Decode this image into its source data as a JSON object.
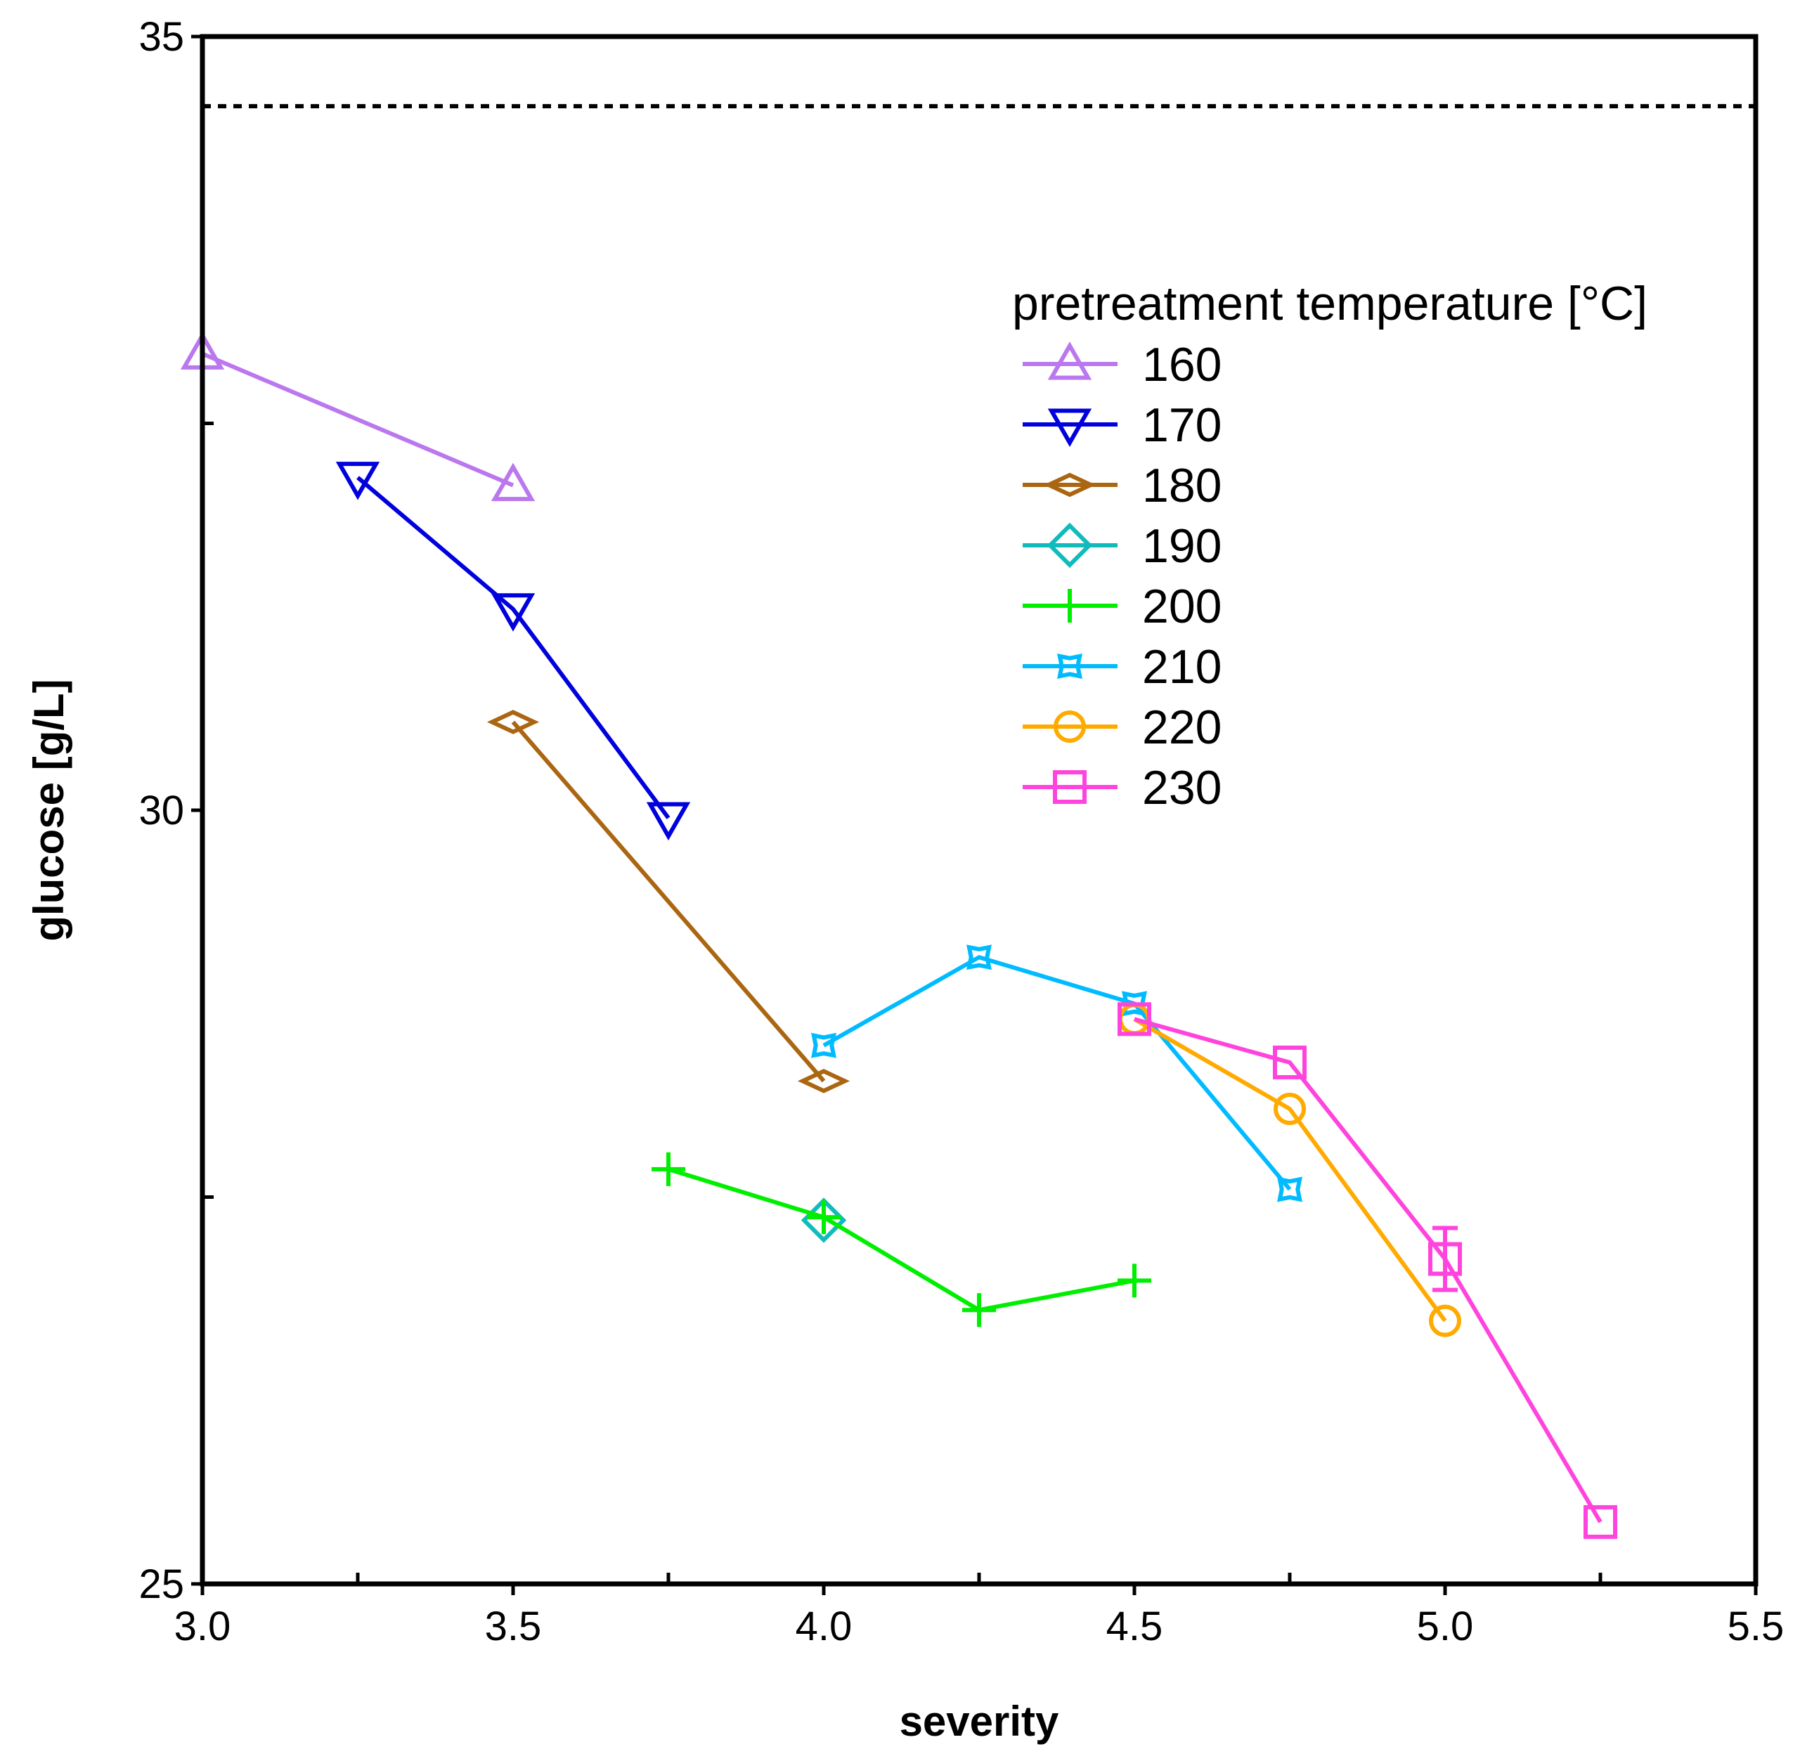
{
  "chart_data": {
    "type": "line",
    "title": "",
    "xlabel": "severity",
    "ylabel": "glucose [g/L]",
    "xlim": [
      3.0,
      5.5
    ],
    "ylim": [
      25,
      35
    ],
    "xticks": [
      3.0,
      3.5,
      4.0,
      4.5,
      5.0,
      5.5
    ],
    "xtick_labels": [
      "3.0",
      "3.5",
      "4.0",
      "4.5",
      "5.0",
      "5.5"
    ],
    "yticks_labeled": [
      25,
      30,
      35
    ],
    "ytick_labels": [
      "25",
      "30",
      "35"
    ],
    "yticks_minor": [
      27.5,
      32.5
    ],
    "xticks_minor": [
      3.25,
      3.75,
      4.25,
      4.75,
      5.25
    ],
    "grid": false,
    "reference_line": {
      "y": 34.55,
      "style": "dotted",
      "color": "#000000"
    },
    "legend": {
      "title": "pretreatment temperature [°C]",
      "placement": "upper-right"
    },
    "series": [
      {
        "name": "160",
        "color": "#bb77ee",
        "marker": "triangle-up",
        "x": [
          3.0,
          3.5
        ],
        "y": [
          32.95,
          32.1
        ]
      },
      {
        "name": "170",
        "color": "#0000dd",
        "marker": "triangle-down",
        "x": [
          3.25,
          3.5,
          3.75
        ],
        "y": [
          32.15,
          31.3,
          29.95
        ]
      },
      {
        "name": "180",
        "color": "#aa6611",
        "marker": "thin-diamond",
        "x": [
          3.5,
          4.0
        ],
        "y": [
          30.57,
          28.25
        ]
      },
      {
        "name": "190",
        "color": "#11bbbb",
        "marker": "diamond",
        "x": [
          4.0
        ],
        "y": [
          27.35
        ]
      },
      {
        "name": "200",
        "color": "#00ee00",
        "marker": "plus",
        "x": [
          3.75,
          4.0,
          4.25,
          4.5
        ],
        "y": [
          27.68,
          27.37,
          26.77,
          26.96
        ]
      },
      {
        "name": "210",
        "color": "#00bbff",
        "marker": "star4",
        "x": [
          4.0,
          4.25,
          4.5,
          4.75
        ],
        "y": [
          28.48,
          29.05,
          28.75,
          27.55
        ]
      },
      {
        "name": "220",
        "color": "#ffaa00",
        "marker": "circle",
        "x": [
          4.5,
          4.75,
          5.0
        ],
        "y": [
          28.65,
          28.07,
          26.7
        ]
      },
      {
        "name": "230",
        "color": "#ff44dd",
        "marker": "square",
        "x": [
          4.5,
          4.75,
          5.0,
          5.25
        ],
        "y": [
          28.65,
          28.37,
          27.1,
          25.4
        ],
        "error": [
          0,
          0,
          0.2,
          0
        ]
      }
    ]
  }
}
